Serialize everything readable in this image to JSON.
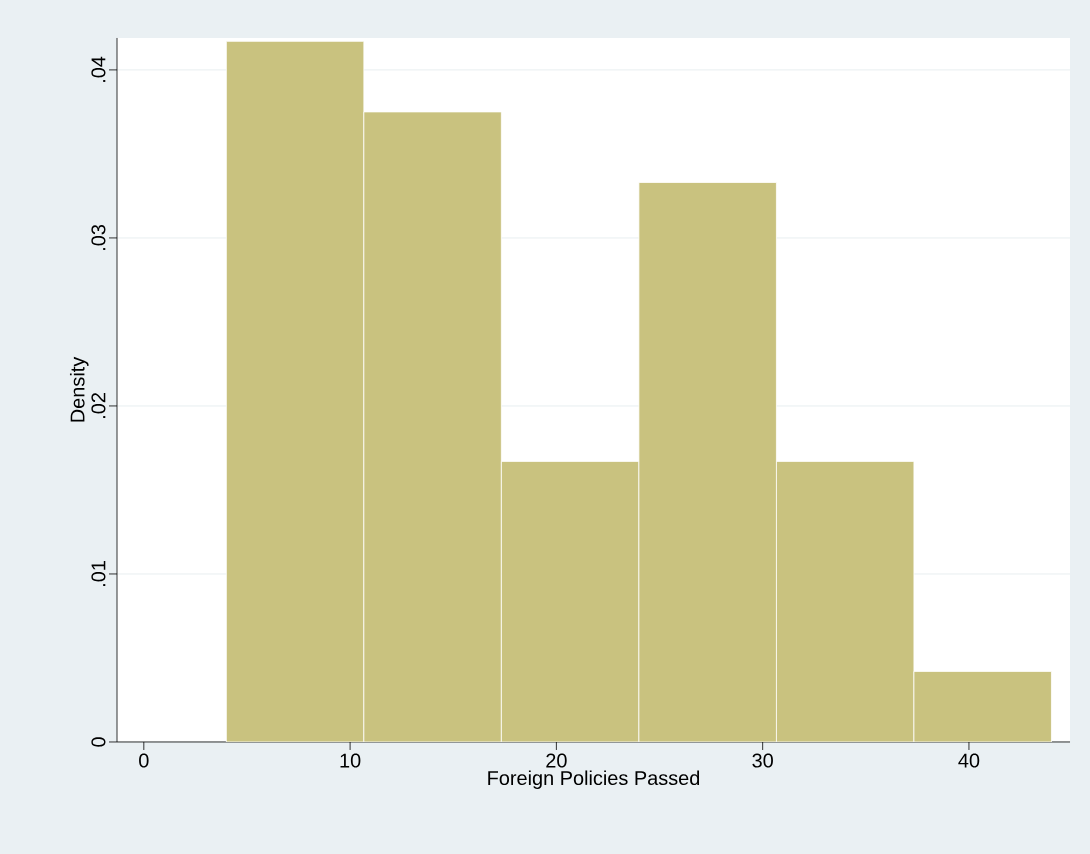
{
  "chart_data": {
    "type": "histogram",
    "xlabel": "Foreign Policies Passed",
    "ylabel": "Density",
    "bins": [
      4,
      10.6667,
      17.3333,
      24,
      30.6667,
      37.3333,
      44
    ],
    "values": [
      0.0417,
      0.0375,
      0.0167,
      0.0333,
      0.0167,
      0.0042
    ],
    "color": "#c9c27f",
    "xlim": [
      -1.3,
      44.9
    ],
    "ylim": [
      0,
      0.0419
    ],
    "xticks": [
      0,
      10,
      20,
      30,
      40
    ],
    "yticks": [
      {
        "value": 0,
        "label": "0"
      },
      {
        "value": 0.01,
        "label": ".01"
      },
      {
        "value": 0.02,
        "label": ".02"
      },
      {
        "value": 0.03,
        "label": ".03"
      },
      {
        "value": 0.04,
        "label": ".04"
      }
    ],
    "grid": "y"
  }
}
